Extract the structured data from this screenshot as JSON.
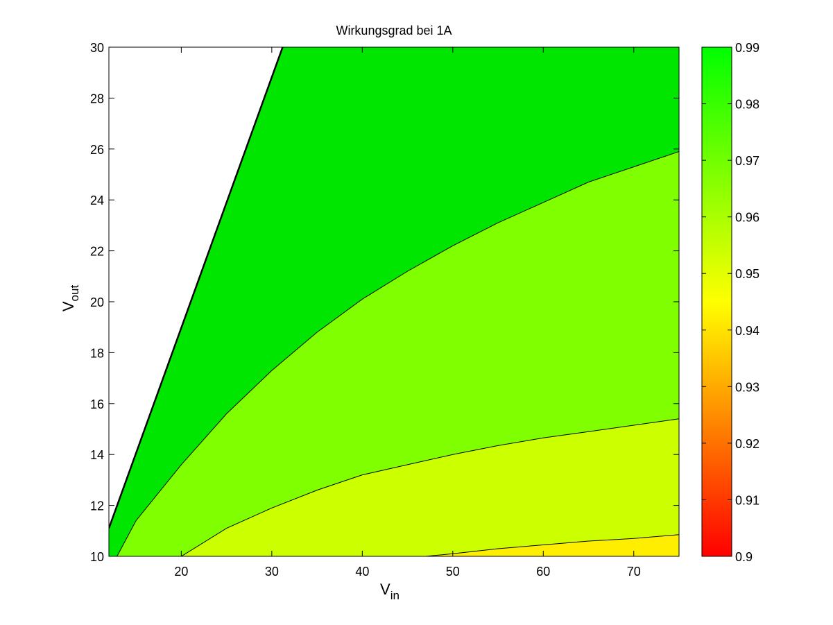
{
  "chart_data": {
    "type": "contour",
    "title": "Wirkungsgrad bei 1A",
    "xlabel": {
      "main": "V",
      "sub": "in"
    },
    "ylabel": {
      "main": "V",
      "sub": "out"
    },
    "xlim": [
      12,
      75
    ],
    "ylim": [
      10,
      30
    ],
    "xticks": [
      20,
      30,
      40,
      50,
      60,
      70
    ],
    "yticks": [
      10,
      12,
      14,
      16,
      18,
      20,
      22,
      24,
      26,
      28,
      30
    ],
    "colorbar": {
      "range": [
        0.9,
        0.99
      ],
      "ticks": [
        "0.9",
        "0.91",
        "0.92",
        "0.93",
        "0.94",
        "0.95",
        "0.96",
        "0.97",
        "0.98",
        "0.99"
      ],
      "colormap": [
        "#ff0000",
        "#ffff00",
        "#00ff00"
      ]
    },
    "background_region_boundary": [
      [
        12,
        11.1
      ],
      [
        31.2,
        30
      ]
    ],
    "contour_lines": [
      {
        "level": 0.98,
        "points": [
          [
            12.9,
            10
          ],
          [
            15,
            11.4
          ],
          [
            20,
            13.6
          ],
          [
            25,
            15.6
          ],
          [
            30,
            17.3
          ],
          [
            35,
            18.8
          ],
          [
            40,
            20.1
          ],
          [
            45,
            21.2
          ],
          [
            50,
            22.2
          ],
          [
            55,
            23.1
          ],
          [
            60,
            23.9
          ],
          [
            65,
            24.7
          ],
          [
            70,
            25.3
          ],
          [
            75,
            25.9
          ]
        ]
      },
      {
        "level": 0.97,
        "points": [
          [
            20,
            10
          ],
          [
            25,
            11.1
          ],
          [
            30,
            11.9
          ],
          [
            35,
            12.6
          ],
          [
            40,
            13.2
          ],
          [
            45,
            13.6
          ],
          [
            50,
            14.0
          ],
          [
            55,
            14.35
          ],
          [
            60,
            14.65
          ],
          [
            65,
            14.9
          ],
          [
            70,
            15.15
          ],
          [
            75,
            15.4
          ]
        ]
      },
      {
        "level": 0.96,
        "points": [
          [
            47,
            10
          ],
          [
            50,
            10.1
          ],
          [
            55,
            10.3
          ],
          [
            60,
            10.45
          ],
          [
            65,
            10.6
          ],
          [
            70,
            10.7
          ],
          [
            75,
            10.85
          ]
        ]
      }
    ],
    "fills": {
      "above_0.98": "#00e600",
      "0.97_to_0.98": "#80ff00",
      "0.96_to_0.97": "#ccff00",
      "below_0.96": "#ffee00"
    },
    "grid": false
  }
}
